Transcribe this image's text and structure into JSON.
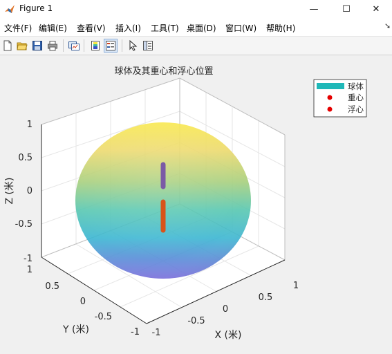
{
  "window": {
    "title": "Figure 1",
    "controls": {
      "minimize": "—",
      "maximize": "☐",
      "close": "✕"
    }
  },
  "menu": [
    "文件(F)",
    "编辑(E)",
    "查看(V)",
    "插入(I)",
    "工具(T)",
    "桌面(D)",
    "窗口(W)",
    "帮助(H)"
  ],
  "toolbar": [
    "new-figure-icon",
    "open-file-icon",
    "save-icon",
    "print-icon",
    "link-plot-icon",
    "colorbar-icon",
    "legend-icon",
    "pointer-icon",
    "property-editor-icon"
  ],
  "chart_data": {
    "type": "surface3d",
    "title": "球体及其重心和浮心位置",
    "xlabel": "X (米)",
    "ylabel": "Y (米)",
    "zlabel": "Z (米)",
    "xlim": [
      -1,
      1
    ],
    "ylim": [
      -1,
      1
    ],
    "zlim": [
      -1,
      1
    ],
    "x_ticks": [
      "-1",
      "-0.5",
      "0",
      "0.5",
      "1"
    ],
    "y_ticks": [
      "-1",
      "-0.5",
      "0",
      "0.5",
      "1"
    ],
    "z_ticks": [
      "-1",
      "-0.5",
      "0",
      "0.5",
      "1"
    ],
    "grid": true,
    "legend_position": "top-right",
    "sphere": {
      "center": [
        0,
        0,
        0
      ],
      "radius": 1,
      "colormap": "parula"
    },
    "series": [
      {
        "name": "重心",
        "marker": "dot",
        "color": "#7b5aa6",
        "z_range": [
          0.0,
          0.4
        ]
      },
      {
        "name": "浮心",
        "marker": "dot",
        "color": "#d95319",
        "z_range": [
          -0.6,
          -0.15
        ]
      }
    ],
    "legend": [
      {
        "label": "球体",
        "marker": "patch",
        "color": "#1fb8b8"
      },
      {
        "label": "重心",
        "marker": "dot",
        "color": "#e50000"
      },
      {
        "label": "浮心",
        "marker": "dot",
        "color": "#e50000"
      }
    ]
  }
}
